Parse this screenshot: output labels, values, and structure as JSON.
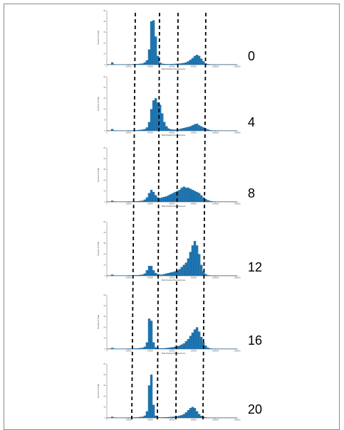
{
  "figure": {
    "row_labels": [
      "0",
      "4",
      "8",
      "12",
      "16",
      "20"
    ]
  },
  "chart_data": [
    {
      "type": "bar",
      "label": "0",
      "xlabel": "Total Nuclear Fluorescence",
      "ylabel": "Percent of Total",
      "x_ticks": [
        "0",
        "200000",
        "400000",
        "600000",
        "800000",
        "1000000",
        "1200000"
      ],
      "y_ticks": [
        "0",
        "10",
        "20",
        "30",
        "40",
        "50"
      ],
      "ylim": [
        0,
        50
      ],
      "values": [
        0.2,
        0.2,
        2,
        0.3,
        0.2,
        0.2,
        0.2,
        0.2,
        0.2,
        0.3,
        0.3,
        0.3,
        0.4,
        0.5,
        0.6,
        0.8,
        1,
        2,
        4,
        14,
        40,
        41,
        26,
        8,
        2,
        0.9,
        0.6,
        0.5,
        0.4,
        0.5,
        0.6,
        0.7,
        0.8,
        1,
        1.2,
        1.5,
        2,
        3,
        4.5,
        6,
        8,
        9,
        8,
        5.5,
        3,
        1.2,
        0.5,
        0.3,
        0.2,
        0.1,
        0.1,
        0.1,
        0.1,
        0.1,
        0.1,
        0.1,
        0.1,
        0.1,
        0.1,
        0.1
      ]
    },
    {
      "type": "bar",
      "label": "4",
      "xlabel": "Total Nuclear Fluorescence",
      "ylabel": "Percent of Total",
      "x_ticks": [
        "0",
        "200000",
        "400000",
        "600000",
        "800000",
        "1000000",
        "1200000"
      ],
      "y_ticks": [
        "0",
        "10",
        "20",
        "30",
        "40",
        "50"
      ],
      "ylim": [
        0,
        50
      ],
      "values": [
        0.2,
        0.2,
        1.5,
        0.3,
        0.2,
        0.2,
        0.2,
        0.2,
        0.2,
        0.3,
        0.3,
        0.3,
        0.4,
        0.5,
        0.6,
        0.8,
        1,
        1.5,
        3,
        8,
        20,
        28,
        30,
        26,
        24,
        16,
        8,
        4,
        2,
        1.2,
        1,
        1,
        1.2,
        1.5,
        2,
        2.5,
        3,
        3.5,
        4,
        5,
        6,
        6.5,
        5,
        4,
        3,
        2,
        1.2,
        0.6,
        0.3,
        0.2,
        0.1,
        0.1,
        0.1,
        0.1,
        0.1,
        0.1,
        0.1,
        0.1,
        0.1,
        0.1
      ]
    },
    {
      "type": "bar",
      "label": "8",
      "xlabel": "Total Nuclear Fluorescence",
      "ylabel": "Percent of Total",
      "x_ticks": [
        "0",
        "200000",
        "400000",
        "600000",
        "800000",
        "1000000",
        "1200000"
      ],
      "y_ticks": [
        "0",
        "10",
        "20",
        "30",
        "40",
        "50"
      ],
      "ylim": [
        0,
        50
      ],
      "values": [
        0.2,
        0.2,
        1,
        0.3,
        0.2,
        0.2,
        0.2,
        0.2,
        0.2,
        0.3,
        0.3,
        0.3,
        0.4,
        0.5,
        0.6,
        0.8,
        1,
        2,
        4,
        8,
        11,
        9,
        6,
        4,
        3.5,
        4,
        4.5,
        5,
        6,
        7,
        8,
        9,
        10,
        11,
        13,
        14,
        13,
        13,
        12,
        11,
        10,
        9,
        8,
        6,
        4,
        2.5,
        1.5,
        0.8,
        0.4,
        0.2,
        0.1,
        0.1,
        0.1,
        0.1,
        0.1,
        0.1,
        0.1,
        0.1,
        0.1,
        0.1
      ]
    },
    {
      "type": "bar",
      "label": "12",
      "xlabel": "Total Nuclear Fluorescence",
      "ylabel": "Percent of Total",
      "x_ticks": [
        "0",
        "200000",
        "400000",
        "600000",
        "800000",
        "1000000",
        "1200000"
      ],
      "y_ticks": [
        "0",
        "10",
        "20",
        "30",
        "40",
        "50"
      ],
      "ylim": [
        0,
        50
      ],
      "values": [
        0.2,
        0.2,
        1,
        0.3,
        0.2,
        0.2,
        0.2,
        0.2,
        0.2,
        0.3,
        0.3,
        0.3,
        0.4,
        0.5,
        0.6,
        0.8,
        1,
        2,
        5,
        9,
        9,
        5,
        2.5,
        1.5,
        1,
        1,
        1.5,
        2,
        2.5,
        3,
        3.5,
        4,
        5,
        6,
        8,
        10,
        12,
        16,
        22,
        28,
        32,
        28,
        20,
        10,
        4,
        1.5,
        0.6,
        0.3,
        0.2,
        0.1,
        0.1,
        0.1,
        0.1,
        0.1,
        0.1,
        0.1,
        0.1,
        0.1,
        0.1,
        0.1
      ]
    },
    {
      "type": "bar",
      "label": "16",
      "xlabel": "Total Nuclear Fluorescence",
      "ylabel": "Percent of Total",
      "x_ticks": [
        "0",
        "200000",
        "400000",
        "600000",
        "800000",
        "1000000",
        "1200000"
      ],
      "y_ticks": [
        "0",
        "10",
        "20",
        "30",
        "40",
        "50"
      ],
      "ylim": [
        0,
        50
      ],
      "values": [
        0.2,
        0.2,
        1,
        0.3,
        0.2,
        0.2,
        0.2,
        0.2,
        0.2,
        0.3,
        0.3,
        0.3,
        0.4,
        0.5,
        0.6,
        0.8,
        1,
        2,
        6,
        28,
        26,
        6,
        1.5,
        0.6,
        0.5,
        0.5,
        0.6,
        0.8,
        1,
        1.3,
        1.6,
        2,
        2.5,
        3,
        4,
        5,
        7,
        9,
        12,
        15,
        18,
        20,
        16,
        11,
        6,
        3,
        1.2,
        0.5,
        0.3,
        0.2,
        0.1,
        0.1,
        0.1,
        0.1,
        0.1,
        0.1,
        0.1,
        0.1,
        0.1,
        0.1
      ]
    },
    {
      "type": "bar",
      "label": "20",
      "xlabel": "Total Nuclear Fluorescence",
      "ylabel": "Percent of Total",
      "x_ticks": [
        "0",
        "200000",
        "400000",
        "600000",
        "800000",
        "1000000",
        "1200000"
      ],
      "y_ticks": [
        "0",
        "10",
        "20",
        "30",
        "40",
        "50"
      ],
      "ylim": [
        0,
        50
      ],
      "values": [
        0.2,
        0.2,
        1,
        0.3,
        0.2,
        0.2,
        0.2,
        0.2,
        0.2,
        0.3,
        0.3,
        0.3,
        0.4,
        0.5,
        0.6,
        0.8,
        1,
        2,
        6,
        30,
        40,
        12,
        2,
        0.6,
        0.4,
        0.4,
        0.5,
        0.6,
        0.7,
        0.8,
        1,
        1.2,
        1.5,
        2,
        2.5,
        3.5,
        5,
        7,
        9,
        10,
        9,
        6,
        3.5,
        1.8,
        0.8,
        0.4,
        0.2,
        0.1,
        0.1,
        0.1,
        0.1,
        0.1,
        0.1,
        0.1,
        0.1,
        0.1,
        0.1,
        0.1,
        0.1,
        0.1
      ]
    }
  ],
  "colors": {
    "bar": "#1f77b4",
    "bar_edge": "#0d4a78",
    "dashed_line": "#000000",
    "axis": "#444444"
  }
}
